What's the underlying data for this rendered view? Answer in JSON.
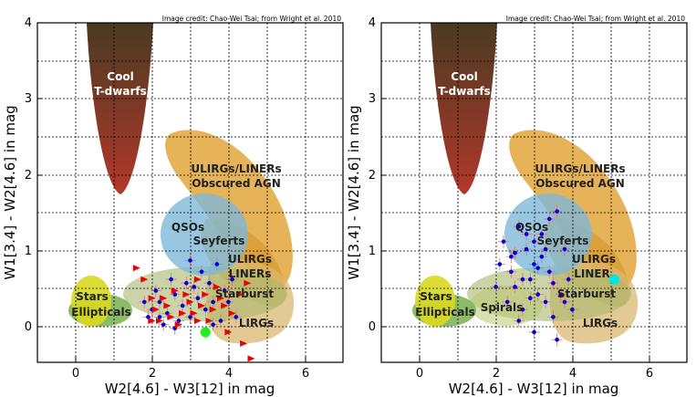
{
  "chart_data": [
    {
      "type": "scatter",
      "title": "",
      "credit": "Image credit: Chao-Wei Tsai; from Wright et al. 2010",
      "xlabel": "W2[4.6] - W3[12] in mag",
      "ylabel": "W1[3.4] - W2[4.6] in mag",
      "xlim": [
        -1,
        7
      ],
      "ylim": [
        -0.5,
        4
      ],
      "xticks": [
        "0",
        "2",
        "4",
        "6"
      ],
      "yticks": [
        "0",
        "1",
        "2",
        "3",
        "4"
      ],
      "grid": true,
      "regions": [
        "Cool",
        "T-dwarfs",
        "ULIRGs/LINERs",
        "Obscured AGN",
        "QSOs",
        "Seyferts",
        "ULIRGs",
        "LINERs",
        "Starburst",
        "Stars",
        "Ellipticals",
        "LIRGs"
      ],
      "series": [
        {
          "name": "sources",
          "color": "#0000dd",
          "points": [
            [
              2.0,
              0.2
            ],
            [
              2.2,
              0.3
            ],
            [
              2.4,
              0.15
            ],
            [
              2.6,
              0.4
            ],
            [
              2.8,
              0.25
            ],
            [
              3.0,
              0.1
            ],
            [
              3.2,
              0.35
            ],
            [
              3.4,
              0.2
            ],
            [
              3.6,
              0.3
            ],
            [
              3.8,
              0.05
            ],
            [
              2.3,
              0.0
            ],
            [
              2.7,
              0.05
            ],
            [
              3.1,
              0.5
            ],
            [
              3.5,
              0.55
            ],
            [
              3.9,
              0.45
            ],
            [
              2.5,
              0.6
            ],
            [
              3.3,
              0.7
            ],
            [
              3.7,
              0.8
            ],
            [
              4.0,
              0.3
            ],
            [
              1.9,
              0.1
            ],
            [
              2.1,
              0.45
            ],
            [
              2.9,
              0.55
            ],
            [
              3.6,
              0.0
            ],
            [
              4.1,
              0.6
            ],
            [
              3.0,
              0.85
            ],
            [
              2.6,
              -0.05
            ],
            [
              3.4,
              -0.1
            ],
            [
              4.2,
              0.1
            ],
            [
              1.8,
              0.3
            ],
            [
              2.2,
              0.1
            ]
          ]
        },
        {
          "name": "upper limits",
          "color": "#ee0000",
          "points": [
            [
              1.6,
              0.75
            ],
            [
              1.8,
              0.6
            ],
            [
              2.0,
              0.35
            ],
            [
              2.2,
              0.05
            ],
            [
              2.4,
              0.25
            ],
            [
              2.6,
              0.45
            ],
            [
              2.8,
              0.15
            ],
            [
              3.0,
              0.3
            ],
            [
              3.2,
              0.05
            ],
            [
              3.4,
              0.4
            ],
            [
              3.6,
              0.2
            ],
            [
              3.8,
              0.35
            ],
            [
              4.0,
              -0.1
            ],
            [
              4.4,
              -0.25
            ],
            [
              4.6,
              -0.45
            ],
            [
              4.5,
              0.55
            ],
            [
              2.1,
              0.2
            ],
            [
              2.5,
              0.1
            ],
            [
              2.9,
              0.4
            ],
            [
              3.3,
              0.25
            ],
            [
              3.7,
              0.5
            ],
            [
              4.1,
              0.15
            ],
            [
              2.3,
              0.35
            ],
            [
              2.7,
              0.0
            ],
            [
              3.1,
              0.15
            ],
            [
              3.5,
              0.05
            ],
            [
              3.9,
              0.25
            ],
            [
              4.3,
              0.4
            ],
            [
              3.2,
              0.6
            ],
            [
              2.0,
              0.05
            ]
          ]
        },
        {
          "name": "target",
          "color": "#22ee22",
          "points": [
            [
              3.4,
              -0.1
            ]
          ]
        }
      ]
    },
    {
      "type": "scatter",
      "title": "",
      "credit": "Image credit: Chao-Wei Tsai; from Wright et al. 2010",
      "xlabel": "W2[4.6] - W3[12] in mag",
      "ylabel": "W1[3.4] - W2[4.6] in mag",
      "xlim": [
        -1,
        7
      ],
      "ylim": [
        -0.5,
        4
      ],
      "xticks": [
        "0",
        "2",
        "4",
        "6"
      ],
      "yticks": [
        "0",
        "1",
        "2",
        "3",
        "4"
      ],
      "grid": true,
      "regions": [
        "Cool",
        "T-dwarfs",
        "ULIRGs/LINERs",
        "Obscured AGN",
        "QSOs",
        "Seyferts",
        "ULIRGs",
        "LINER",
        "Starburst",
        "Stars",
        "Spirals",
        "Ellipticals",
        "LIRGs"
      ],
      "series": [
        {
          "name": "sources",
          "color": "#0000dd",
          "points": [
            [
              2.2,
              1.1
            ],
            [
              2.4,
              0.9
            ],
            [
              2.6,
              1.3
            ],
            [
              2.8,
              1.0
            ],
            [
              3.0,
              0.8
            ],
            [
              3.2,
              1.2
            ],
            [
              3.4,
              0.7
            ],
            [
              3.6,
              1.5
            ],
            [
              3.8,
              1.0
            ],
            [
              2.9,
              0.6
            ],
            [
              3.1,
              0.4
            ],
            [
              2.5,
              0.5
            ],
            [
              2.7,
              0.2
            ],
            [
              3.3,
              0.3
            ],
            [
              3.5,
              0.1
            ],
            [
              2.3,
              0.3
            ],
            [
              3.0,
              -0.1
            ],
            [
              3.6,
              -0.2
            ],
            [
              2.4,
              0.7
            ],
            [
              3.2,
              0.9
            ],
            [
              3.9,
              0.6
            ],
            [
              2.6,
              0.05
            ],
            [
              2.0,
              0.5
            ],
            [
              3.4,
              1.4
            ],
            [
              2.8,
              1.2
            ],
            [
              3.7,
              0.4
            ],
            [
              2.1,
              0.8
            ],
            [
              3.3,
              1.0
            ],
            [
              4.0,
              0.2
            ],
            [
              3.5,
              0.55
            ],
            [
              2.9,
              0.35
            ],
            [
              3.1,
              0.75
            ],
            [
              2.5,
              0.95
            ],
            [
              3.8,
              0.3
            ],
            [
              3.0,
              1.1
            ],
            [
              2.7,
              0.6
            ]
          ]
        },
        {
          "name": "target",
          "color": "#00e5ee",
          "points": [
            [
              5.1,
              0.6
            ]
          ]
        }
      ]
    }
  ]
}
